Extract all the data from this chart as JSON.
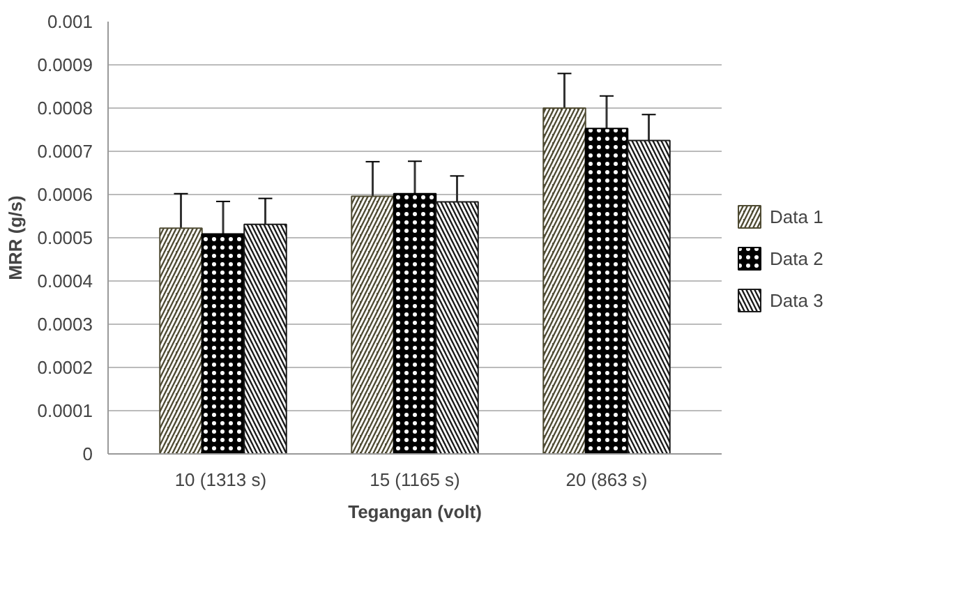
{
  "chart_data": {
    "type": "bar",
    "xlabel": "Tegangan (volt)",
    "ylabel": "MRR (g/s)",
    "categories": [
      "10  (1313 s)",
      "15 (1165 s)",
      "20 (863 s)"
    ],
    "series": [
      {
        "name": "Data 1",
        "color": "#4f4b33",
        "values": [
          0.000522,
          0.000596,
          0.0008
        ],
        "errors": [
          8e-05,
          8e-05,
          8e-05
        ]
      },
      {
        "name": "Data 2",
        "color": "#000000",
        "values": [
          0.000509,
          0.000602,
          0.000753
        ],
        "errors": [
          7.5e-05,
          7.5e-05,
          7.5e-05
        ]
      },
      {
        "name": "Data 3",
        "color": "#1a1a1a",
        "values": [
          0.000531,
          0.000583,
          0.000725
        ],
        "errors": [
          6e-05,
          6e-05,
          6e-05
        ]
      }
    ],
    "ylim": [
      0,
      0.001
    ],
    "yticks": [
      0,
      0.0001,
      0.0002,
      0.0003,
      0.0004,
      0.0005,
      0.0006,
      0.0007,
      0.0008,
      0.0009,
      0.001
    ],
    "grid": "y",
    "legend": "right"
  }
}
